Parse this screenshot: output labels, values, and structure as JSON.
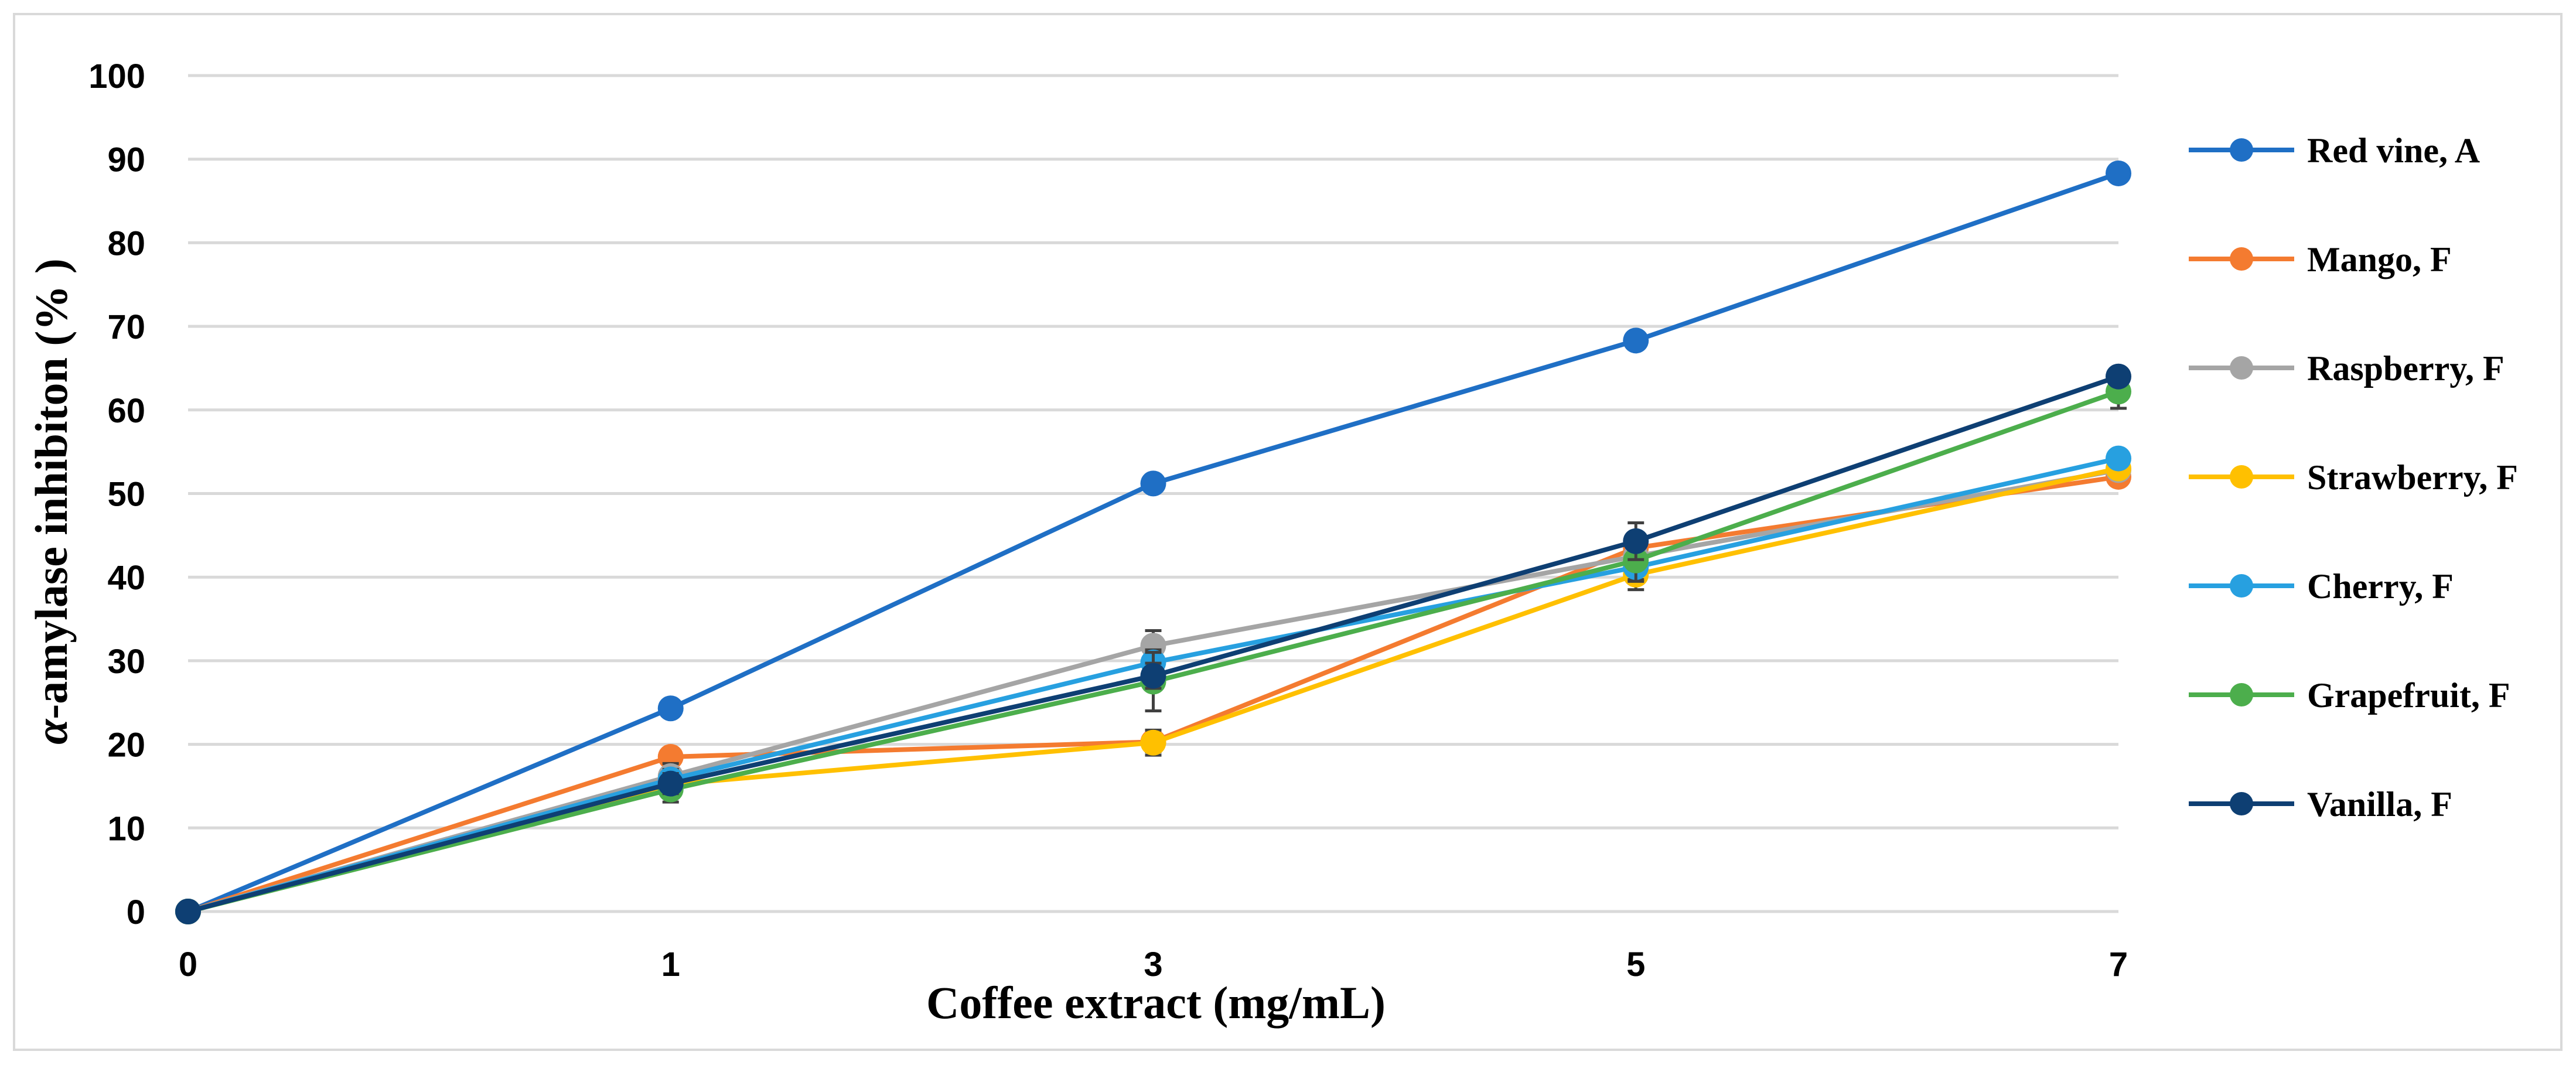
{
  "chart_data": {
    "type": "line",
    "title": "",
    "xlabel": "Coffee extract (mg/mL)",
    "ylabel_symbol": "α",
    "ylabel_rest": "-amylase inhibiton (% )",
    "categories": [
      "0",
      "1",
      "3",
      "5",
      "7"
    ],
    "ylim": [
      0,
      100
    ],
    "yticks": [
      0,
      10,
      20,
      30,
      40,
      50,
      60,
      70,
      80,
      90,
      100
    ],
    "grid": true,
    "legend_position": "right",
    "series": [
      {
        "name": "Red vine, A",
        "color": "#1f6fc5",
        "values": [
          0,
          24.3,
          51.2,
          68.3,
          88.3
        ],
        "errors": [
          0,
          0.8,
          0.8,
          0.8,
          0.8
        ]
      },
      {
        "name": "Mango, F",
        "color": "#f47b30",
        "values": [
          0,
          18.5,
          20.3,
          43.5,
          52.0
        ],
        "errors": [
          0,
          0.8,
          1.2,
          1.5,
          1.0
        ]
      },
      {
        "name": "Raspberry, F",
        "color": "#a5a5a5",
        "values": [
          0,
          16.2,
          31.8,
          42.5,
          52.8
        ],
        "errors": [
          0,
          1.5,
          1.8,
          2.5,
          1.0
        ]
      },
      {
        "name": "Strawberry, F",
        "color": "#ffc000",
        "values": [
          0,
          15.2,
          20.2,
          40.3,
          53.0
        ],
        "errors": [
          0,
          1.2,
          1.5,
          1.8,
          1.0
        ]
      },
      {
        "name": "Cherry, F",
        "color": "#27a0e0",
        "values": [
          0,
          15.8,
          29.8,
          41.2,
          54.2
        ],
        "errors": [
          0,
          1.2,
          1.5,
          1.5,
          1.0
        ]
      },
      {
        "name": "Grapefruit, F",
        "color": "#4cae4c",
        "values": [
          0,
          14.6,
          27.5,
          42.0,
          62.2
        ],
        "errors": [
          0,
          1.5,
          3.5,
          2.5,
          2.0
        ]
      },
      {
        "name": "Vanilla, F",
        "color": "#0e3f73",
        "values": [
          0,
          15.3,
          28.2,
          44.3,
          64.0
        ],
        "errors": [
          0,
          1.2,
          1.5,
          2.2,
          1.0
        ]
      }
    ]
  }
}
